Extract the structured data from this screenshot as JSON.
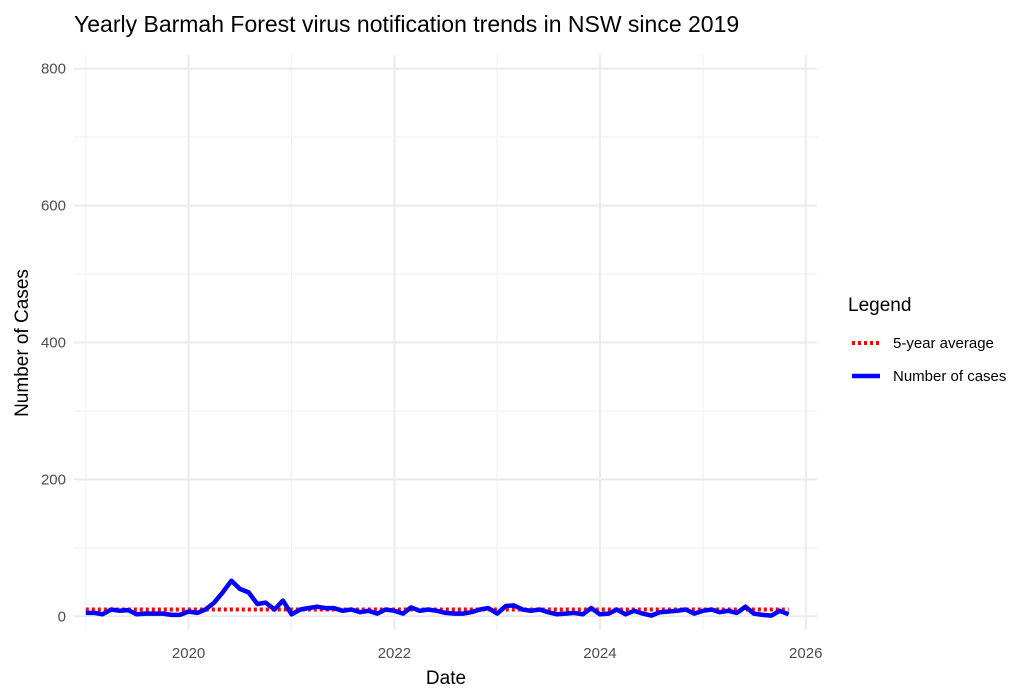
{
  "chart_data": {
    "type": "line",
    "title": "Yearly Barmah Forest virus notification trends in NSW since 2019",
    "xlabel": "Date",
    "ylabel": "Number of Cases",
    "xlim": [
      "2018-11-20",
      "2026-02-10"
    ],
    "ylim": [
      -20,
      820
    ],
    "x_ticks": [
      "2020",
      "2022",
      "2024",
      "2026"
    ],
    "y_ticks": [
      "0",
      "200",
      "400",
      "600",
      "800"
    ],
    "grid": true,
    "legend": {
      "title": "Legend",
      "position": "right",
      "entries": [
        "5-year average",
        "Number of cases"
      ]
    },
    "series": [
      {
        "name": "5-year average",
        "color": "#ff0000",
        "style": "dotted",
        "x": [
          "2019-01-01",
          "2025-11-01"
        ],
        "y": [
          10,
          10
        ]
      },
      {
        "name": "Number of cases",
        "color": "#0000ff",
        "style": "solid",
        "x": [
          "2019-01-01",
          "2019-02-01",
          "2019-03-01",
          "2019-04-01",
          "2019-05-01",
          "2019-06-01",
          "2019-07-01",
          "2019-08-01",
          "2019-09-01",
          "2019-10-01",
          "2019-11-01",
          "2019-12-01",
          "2020-01-01",
          "2020-02-01",
          "2020-03-01",
          "2020-04-01",
          "2020-05-01",
          "2020-06-01",
          "2020-07-01",
          "2020-08-01",
          "2020-09-01",
          "2020-10-01",
          "2020-11-01",
          "2020-12-01",
          "2021-01-01",
          "2021-02-01",
          "2021-03-01",
          "2021-04-01",
          "2021-05-01",
          "2021-06-01",
          "2021-07-01",
          "2021-08-01",
          "2021-09-01",
          "2021-10-01",
          "2021-11-01",
          "2021-12-01",
          "2022-01-01",
          "2022-02-01",
          "2022-03-01",
          "2022-04-01",
          "2022-05-01",
          "2022-06-01",
          "2022-07-01",
          "2022-08-01",
          "2022-09-01",
          "2022-10-01",
          "2022-11-01",
          "2022-12-01",
          "2023-01-01",
          "2023-02-01",
          "2023-03-01",
          "2023-04-01",
          "2023-05-01",
          "2023-06-01",
          "2023-07-01",
          "2023-08-01",
          "2023-09-01",
          "2023-10-01",
          "2023-11-01",
          "2023-12-01",
          "2024-01-01",
          "2024-02-01",
          "2024-03-01",
          "2024-04-01",
          "2024-05-01",
          "2024-06-01",
          "2024-07-01",
          "2024-08-01",
          "2024-09-01",
          "2024-10-01",
          "2024-11-01",
          "2024-12-01",
          "2025-01-01",
          "2025-02-01",
          "2025-03-01",
          "2025-04-01",
          "2025-05-01",
          "2025-06-01",
          "2025-07-01",
          "2025-08-01",
          "2025-09-01",
          "2025-10-01",
          "2025-11-01"
        ],
        "y": [
          5,
          5,
          3,
          10,
          8,
          9,
          3,
          4,
          4,
          4,
          2,
          2,
          7,
          5,
          10,
          20,
          35,
          52,
          40,
          35,
          18,
          20,
          10,
          23,
          3,
          10,
          12,
          14,
          12,
          12,
          8,
          10,
          6,
          8,
          4,
          10,
          8,
          4,
          13,
          8,
          10,
          8,
          5,
          4,
          4,
          6,
          10,
          12,
          4,
          15,
          16,
          10,
          8,
          10,
          6,
          3,
          4,
          5,
          3,
          12,
          3,
          4,
          10,
          3,
          8,
          4,
          1,
          6,
          7,
          8,
          10,
          4,
          8,
          10,
          6,
          8,
          5,
          14,
          4,
          2,
          1,
          8,
          3
        ]
      }
    ]
  }
}
